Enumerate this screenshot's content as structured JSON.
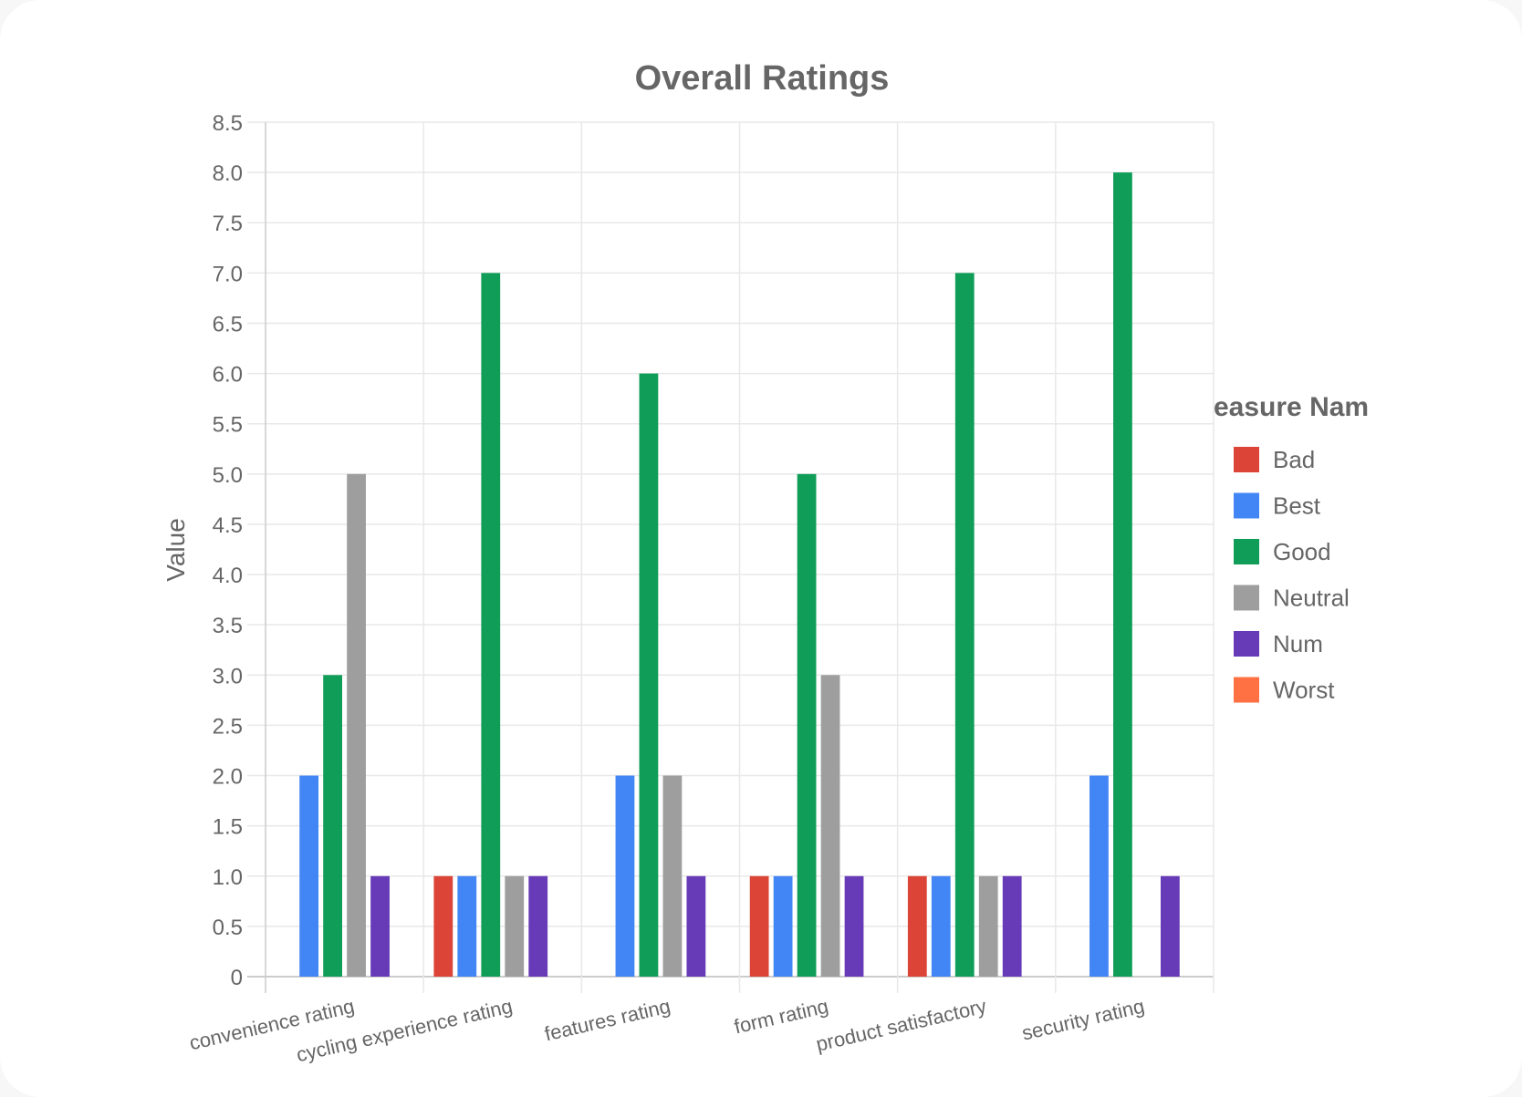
{
  "chart_data": {
    "type": "bar",
    "title": "Overall Ratings",
    "ylabel": "Value",
    "xlabel": "",
    "legend_title": "easure Nam",
    "legend_position": "right",
    "grid": true,
    "ylim": [
      0,
      8.5
    ],
    "yticks": [
      "0",
      "0.5",
      "1.0",
      "1.5",
      "2.0",
      "2.5",
      "3.0",
      "3.5",
      "4.0",
      "4.5",
      "5.0",
      "5.5",
      "6.0",
      "6.5",
      "7.0",
      "7.5",
      "8.0",
      "8.5"
    ],
    "categories": [
      "convenience rating",
      "cycling experience rating",
      "features rating",
      "form rating",
      "product satisfactory",
      "security rating"
    ],
    "series": [
      {
        "name": "Bad",
        "color": "#db4437",
        "values": [
          null,
          1,
          null,
          1,
          1,
          null
        ]
      },
      {
        "name": "Best",
        "color": "#4285f4",
        "values": [
          2,
          1,
          2,
          1,
          1,
          2
        ]
      },
      {
        "name": "Good",
        "color": "#0f9d58",
        "values": [
          3,
          7,
          6,
          5,
          7,
          8
        ]
      },
      {
        "name": "Neutral",
        "color": "#9e9e9e",
        "values": [
          5,
          1,
          2,
          3,
          1,
          null
        ]
      },
      {
        "name": "Num",
        "color": "#673ab7",
        "values": [
          1,
          1,
          1,
          1,
          1,
          1
        ]
      },
      {
        "name": "Worst",
        "color": "#ff7043",
        "values": [
          null,
          null,
          null,
          null,
          null,
          null
        ]
      }
    ]
  }
}
